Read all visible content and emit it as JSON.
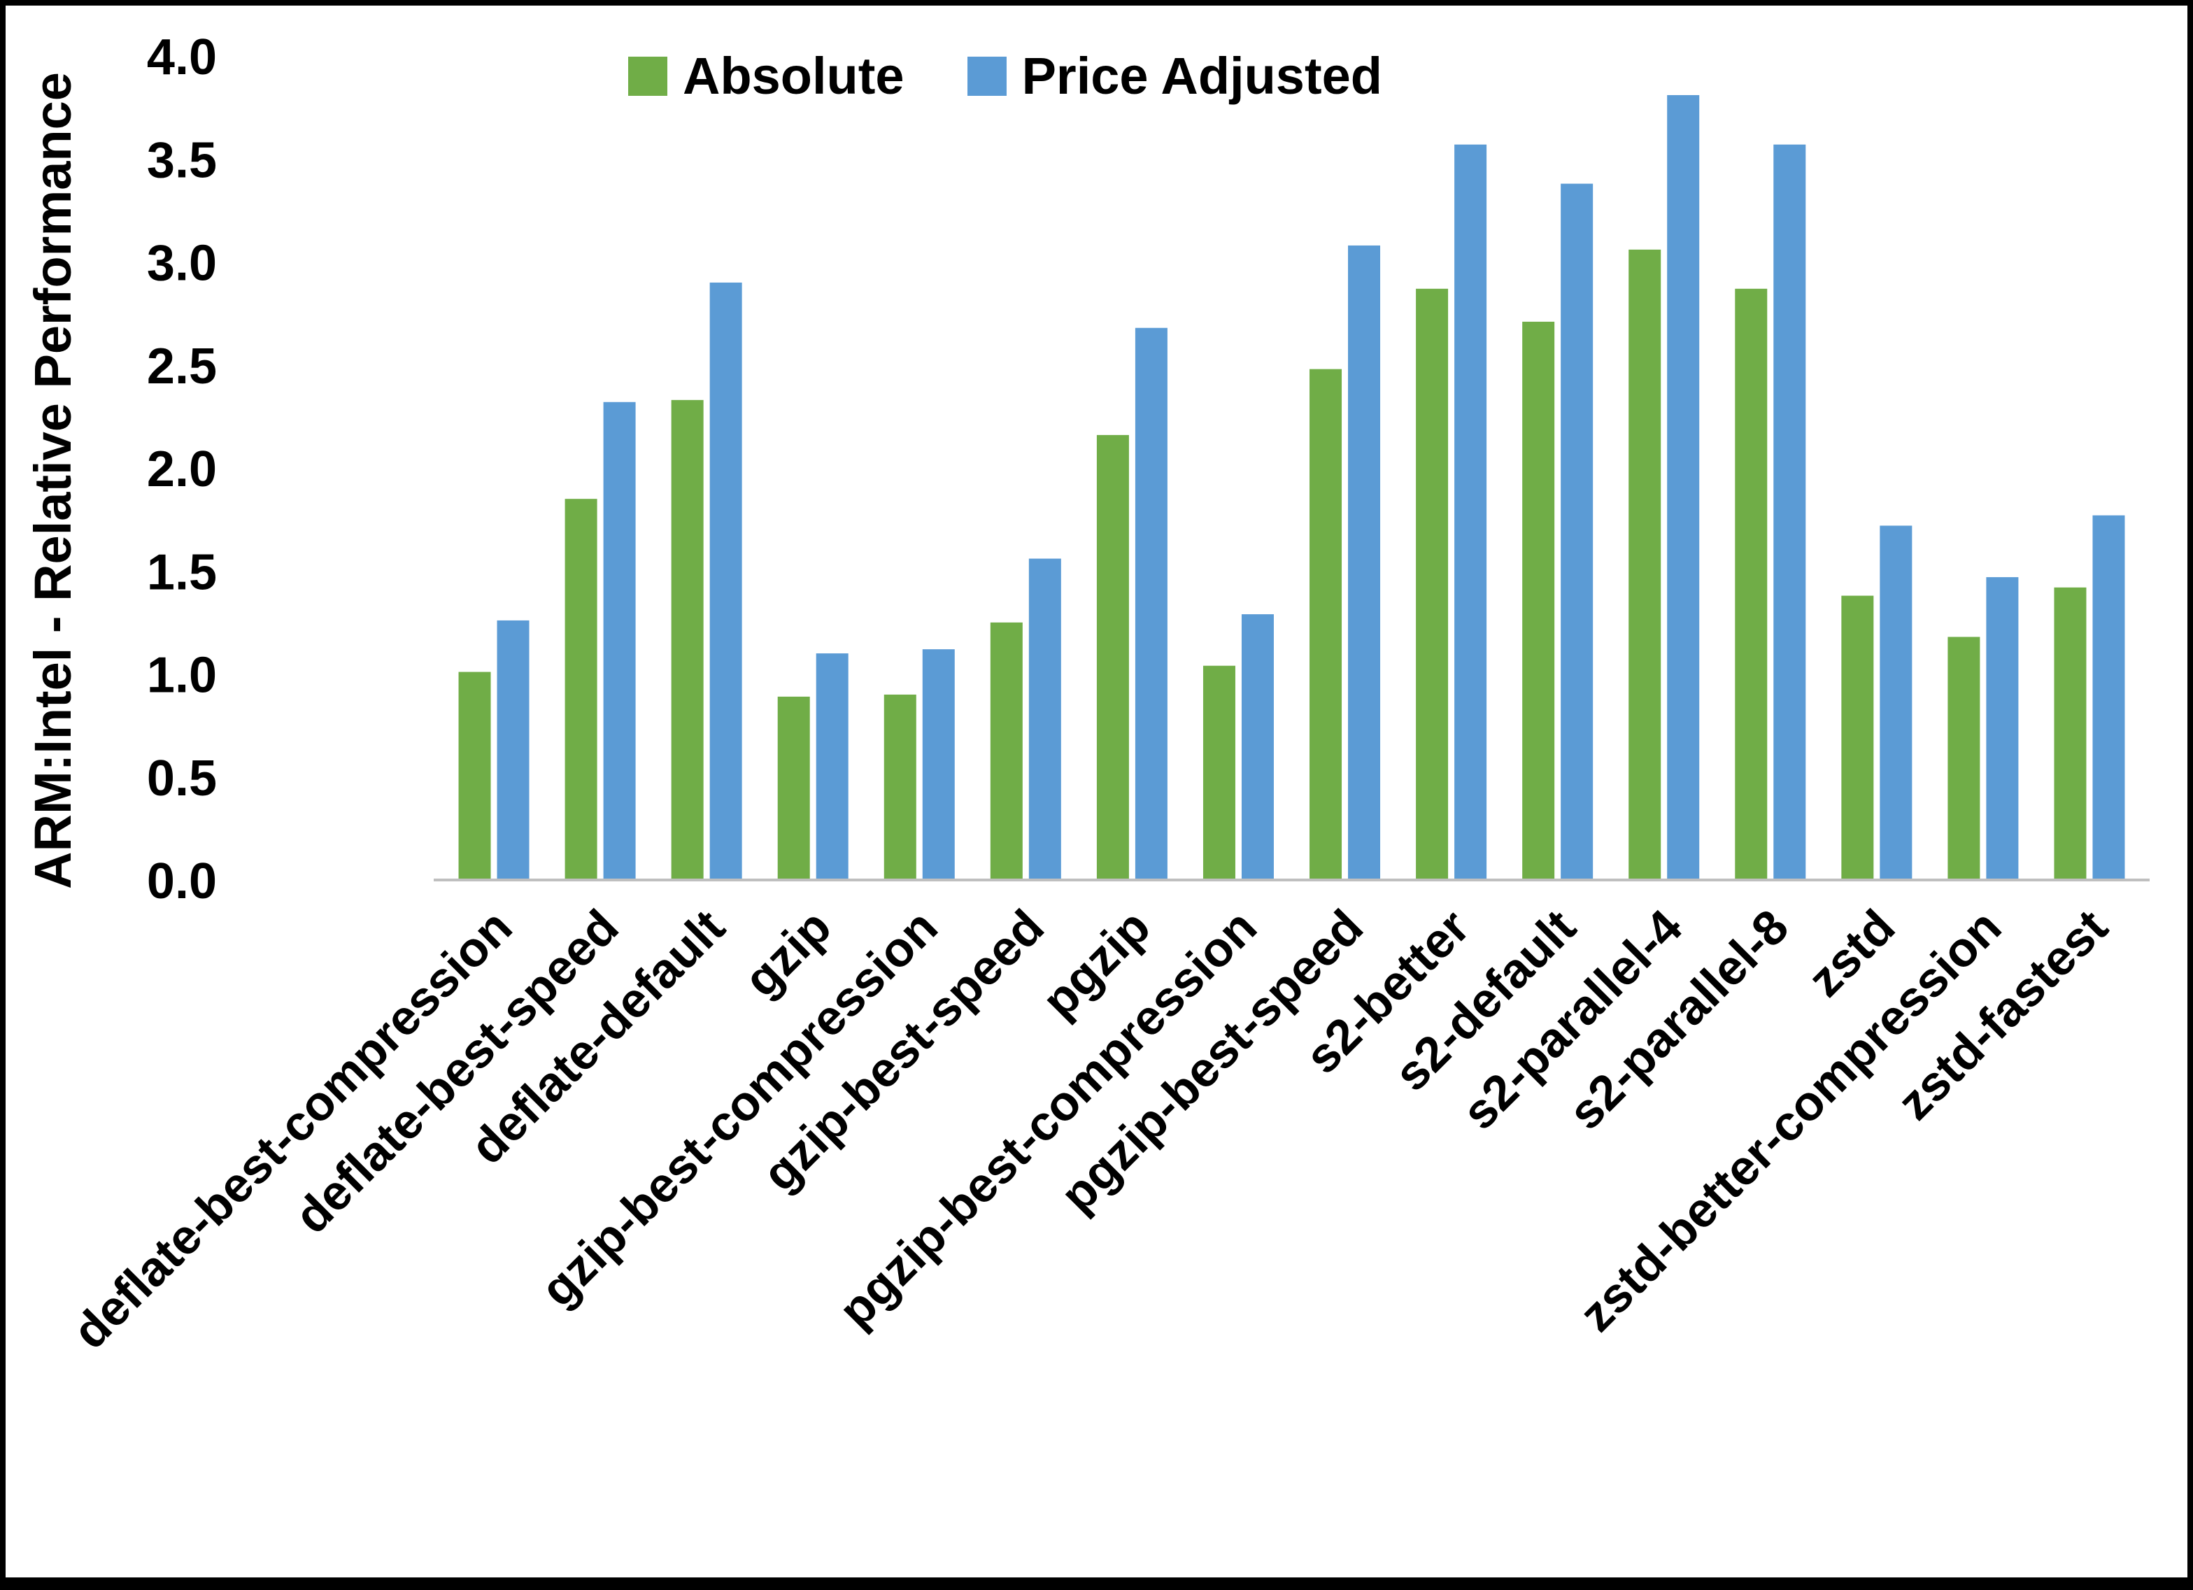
{
  "chart_data": {
    "type": "bar",
    "title": "",
    "xlabel": "",
    "ylabel": "ARM:Intel - Relative Performance",
    "ylim": [
      0,
      4.0
    ],
    "ytick_step": 0.5,
    "grid": false,
    "legend_position": "top",
    "background": "#FFFFFF",
    "axis_line_color": "#BFBFBF",
    "text_color": "#000000",
    "categories": [
      "deflate-best-compression",
      "deflate-best-speed",
      "deflate-default",
      "gzip",
      "gzip-best-compression",
      "gzip-best-speed",
      "pgzip",
      "pgzip-best-compression",
      "pgzip-best-speed",
      "s2-better",
      "s2-default",
      "s2-parallel-4",
      "s2-parallel-8",
      "zstd",
      "zstd-better-compression",
      "zstd-fastest"
    ],
    "series": [
      {
        "name": "Absolute",
        "color": "#70AD47",
        "values": [
          1.01,
          1.85,
          2.33,
          0.89,
          0.9,
          1.25,
          2.16,
          1.04,
          2.48,
          2.87,
          2.71,
          3.06,
          2.87,
          1.38,
          1.18,
          1.42
        ]
      },
      {
        "name": "Price Adjusted",
        "color": "#5B9BD5",
        "values": [
          1.26,
          2.32,
          2.9,
          1.1,
          1.12,
          1.56,
          2.68,
          1.29,
          3.08,
          3.57,
          3.38,
          3.81,
          3.57,
          1.72,
          1.47,
          1.77
        ]
      }
    ]
  }
}
